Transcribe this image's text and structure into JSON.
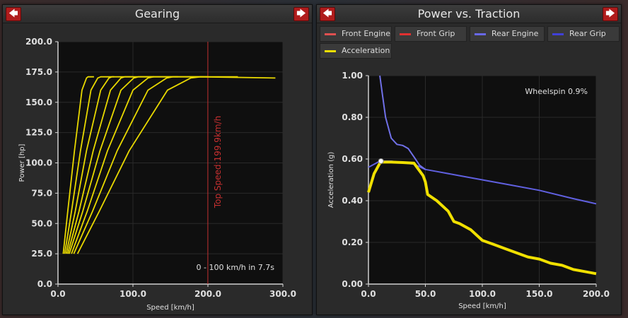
{
  "left_panel": {
    "title": "Gearing",
    "prev_icon": "arrow-left-icon",
    "next_icon": "arrow-right-icon"
  },
  "right_panel": {
    "title": "Power vs. Traction",
    "prev_icon": "arrow-left-icon",
    "next_icon": "arrow-right-icon",
    "legend": [
      {
        "label": "Front Engine",
        "color": "#e05050"
      },
      {
        "label": "Front Grip",
        "color": "#e03030"
      },
      {
        "label": "Rear Engine",
        "color": "#6868e8"
      },
      {
        "label": "Rear Grip",
        "color": "#4040d8"
      },
      {
        "label": "Acceleration",
        "color": "#f0e000"
      }
    ]
  },
  "chart_data": [
    {
      "type": "line",
      "xlabel": "Speed [km/h]",
      "ylabel": "Power [hp]",
      "xlim": [
        0,
        300
      ],
      "ylim": [
        0,
        200
      ],
      "xticks": [
        "0.0",
        "100.0",
        "200.0",
        "300.0"
      ],
      "yticks": [
        "0.0",
        "25.0",
        "50.0",
        "75.0",
        "100.0",
        "125.0",
        "150.0",
        "175.0",
        "200.0"
      ],
      "line_color": "#e8d800",
      "series": [
        {
          "x": [
            7,
            13,
            22,
            32,
            38,
            40,
            48
          ],
          "y": [
            25,
            60,
            110,
            160,
            170,
            171,
            171
          ]
        },
        {
          "x": [
            9,
            18,
            30,
            44,
            53,
            57,
            75
          ],
          "y": [
            25,
            60,
            110,
            160,
            170,
            171,
            171
          ]
        },
        {
          "x": [
            11,
            23,
            38,
            57,
            68,
            72,
            100
          ],
          "y": [
            25,
            60,
            110,
            160,
            170,
            171,
            171
          ]
        },
        {
          "x": [
            13,
            28,
            47,
            70,
            84,
            89,
            128
          ],
          "y": [
            25,
            60,
            110,
            160,
            170,
            171,
            171
          ]
        },
        {
          "x": [
            15,
            33,
            56,
            84,
            101,
            107,
            160
          ],
          "y": [
            25,
            60,
            110,
            160,
            170,
            171,
            171
          ]
        },
        {
          "x": [
            18,
            39,
            66,
            100,
            120,
            127,
            200
          ],
          "y": [
            25,
            60,
            110,
            160,
            170,
            171,
            171
          ]
        },
        {
          "x": [
            21,
            46,
            79,
            120,
            145,
            153,
            240
          ],
          "y": [
            25,
            60,
            110,
            160,
            170,
            171,
            171
          ]
        },
        {
          "x": [
            26,
            55,
            95,
            146,
            177,
            190,
            290
          ],
          "y": [
            25,
            60,
            110,
            160,
            170,
            171,
            170
          ]
        }
      ],
      "top_speed_x": 199.9,
      "top_speed_label": "Top Speed:199.9km/h",
      "annotation": "0 - 100 km/h in 7.7s"
    },
    {
      "type": "line",
      "xlabel": "Speed [km/h]",
      "ylabel": "Acceleration (g)",
      "xlim": [
        0,
        200
      ],
      "ylim": [
        0,
        1.0
      ],
      "xticks": [
        "0.0",
        "50.0",
        "100.0",
        "150.0",
        "200.0"
      ],
      "yticks": [
        "0.00",
        "0.20",
        "0.40",
        "0.60",
        "0.80",
        "1.00"
      ],
      "series": [
        {
          "name": "Rear Grip",
          "color": "#6060e0",
          "x": [
            0,
            10,
            20,
            40,
            50,
            60,
            80,
            100,
            120,
            150,
            180,
            200
          ],
          "y": [
            0.56,
            0.59,
            0.59,
            0.575,
            0.55,
            0.54,
            0.52,
            0.5,
            0.48,
            0.45,
            0.41,
            0.385
          ]
        },
        {
          "name": "Rear Engine",
          "color": "#7070e8",
          "x": [
            10,
            12,
            15,
            20,
            25,
            30,
            35,
            40,
            45,
            50
          ],
          "y": [
            1.0,
            0.92,
            0.8,
            0.7,
            0.67,
            0.665,
            0.65,
            0.61,
            0.57,
            0.55
          ]
        },
        {
          "name": "Acceleration",
          "color": "#f0e000",
          "x": [
            0,
            5,
            10,
            12,
            20,
            30,
            40,
            48,
            50,
            52,
            60,
            70,
            75,
            80,
            90,
            100,
            110,
            120,
            130,
            140,
            150,
            160,
            170,
            180,
            190,
            200
          ],
          "y": [
            0.44,
            0.53,
            0.58,
            0.585,
            0.585,
            0.583,
            0.58,
            0.52,
            0.49,
            0.43,
            0.4,
            0.35,
            0.3,
            0.29,
            0.26,
            0.21,
            0.19,
            0.17,
            0.15,
            0.13,
            0.12,
            0.1,
            0.09,
            0.07,
            0.06,
            0.05
          ]
        }
      ],
      "marker": {
        "x": 11,
        "y": 0.59
      },
      "annotation": "Wheelspin 0.9%"
    }
  ]
}
